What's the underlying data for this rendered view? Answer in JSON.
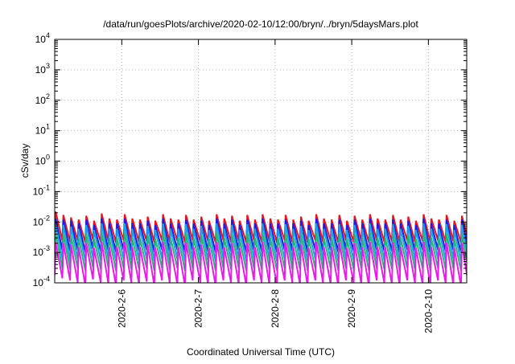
{
  "chart_data": {
    "type": "line",
    "title": "/data/run/goesPlots/archive/2020-02-10/12:00/bryn/../bryn/5daysMars.plot",
    "xlabel": "Coordinated Universal Time (UTC)",
    "ylabel": "cSv/day",
    "yscale": "log",
    "ylim": [
      0.0001,
      10000
    ],
    "xlim": [
      "2020-02-05 03:00",
      "2020-02-10 12:00"
    ],
    "x_ticks": [
      "2020-02-06",
      "2020-02-07",
      "2020-02-08",
      "2020-02-09",
      "2020-02-10"
    ],
    "x_tick_labels": [
      "2020-2-6",
      "2020-2-7",
      "2020-2-8",
      "2020-2-9",
      "2020-2-10"
    ],
    "y_tick_labels": [
      {
        "base": "10",
        "exp": "-4"
      },
      {
        "base": "10",
        "exp": "-3"
      },
      {
        "base": "10",
        "exp": "-2"
      },
      {
        "base": "10",
        "exp": "-1"
      },
      {
        "base": "10",
        "exp": "0"
      },
      {
        "base": "10",
        "exp": "1"
      },
      {
        "base": "10",
        "exp": "2"
      },
      {
        "base": "10",
        "exp": "3"
      },
      {
        "base": "10",
        "exp": "4"
      }
    ],
    "y_ticks": [
      0.0001,
      0.001,
      0.01,
      0.1,
      1,
      10,
      100,
      1000,
      10000
    ],
    "grid": true,
    "sawtooth_period_hours": 2.4,
    "series": [
      {
        "color": "#e8141c",
        "peaks": [
          0.022,
          0.017,
          0.014,
          0.012,
          0.016,
          0.011,
          0.019,
          0.013,
          0.012,
          0.018,
          0.013,
          0.012,
          0.015,
          0.011,
          0.018,
          0.013,
          0.012,
          0.017,
          0.012,
          0.015,
          0.011,
          0.018,
          0.013,
          0.016,
          0.011,
          0.017,
          0.012,
          0.018,
          0.013,
          0.012,
          0.017,
          0.012,
          0.015,
          0.011,
          0.018,
          0.013,
          0.012,
          0.017,
          0.011,
          0.016,
          0.012,
          0.018,
          0.013,
          0.012,
          0.017,
          0.012,
          0.015,
          0.011,
          0.018,
          0.013,
          0.012,
          0.017,
          0.011,
          0.016
        ],
        "troughs": [
          0.003,
          0.0025,
          0.0022,
          0.0024,
          0.0021,
          0.0026,
          0.0022,
          0.0024,
          0.0021,
          0.0025,
          0.0023,
          0.0022,
          0.0024,
          0.0021,
          0.0025,
          0.0022,
          0.0024,
          0.0021,
          0.0025,
          0.0022,
          0.0023,
          0.0021,
          0.0025,
          0.0022,
          0.0024,
          0.0021,
          0.0025,
          0.0022,
          0.0024,
          0.0021,
          0.0025,
          0.0022,
          0.0023,
          0.0021,
          0.0025,
          0.0022,
          0.0024,
          0.0021,
          0.0025,
          0.0022,
          0.0024,
          0.0021,
          0.0025,
          0.0022,
          0.0023,
          0.0021,
          0.0025,
          0.0022,
          0.0024,
          0.0021,
          0.0025,
          0.0022,
          0.0024,
          0.0021
        ]
      },
      {
        "color": "#1c1ce8",
        "peaks": [
          0.013,
          0.012,
          0.011,
          0.009,
          0.012,
          0.008,
          0.013,
          0.009,
          0.009,
          0.013,
          0.009,
          0.009,
          0.011,
          0.008,
          0.013,
          0.009,
          0.009,
          0.012,
          0.009,
          0.011,
          0.008,
          0.013,
          0.009,
          0.012,
          0.008,
          0.012,
          0.009,
          0.013,
          0.009,
          0.009,
          0.012,
          0.009,
          0.011,
          0.008,
          0.013,
          0.009,
          0.009,
          0.012,
          0.008,
          0.012,
          0.009,
          0.013,
          0.009,
          0.009,
          0.012,
          0.009,
          0.011,
          0.008,
          0.013,
          0.009,
          0.009,
          0.012,
          0.008,
          0.012
        ],
        "troughs": [
          0.0013,
          0.0012,
          0.0011,
          0.0012,
          0.001,
          0.0013,
          0.0011,
          0.0012,
          0.001,
          0.0012,
          0.0011,
          0.0011,
          0.0012,
          0.001,
          0.0012,
          0.0011,
          0.0012,
          0.001,
          0.0012,
          0.0011,
          0.0011,
          0.001,
          0.0012,
          0.0011,
          0.0012,
          0.001,
          0.0012,
          0.0011,
          0.0012,
          0.001,
          0.0012,
          0.0011,
          0.0011,
          0.001,
          0.0012,
          0.0011,
          0.0012,
          0.001,
          0.0012,
          0.0011,
          0.0012,
          0.001,
          0.0012,
          0.0011,
          0.0011,
          0.001,
          0.0012,
          0.0011,
          0.0012,
          0.001,
          0.0012,
          0.0011,
          0.0012,
          0.001
        ]
      },
      {
        "color": "#1ca0e8",
        "peaks": [
          0.009,
          0.008,
          0.007,
          0.006,
          0.008,
          0.0055,
          0.009,
          0.006,
          0.006,
          0.009,
          0.006,
          0.006,
          0.0075,
          0.0055,
          0.009,
          0.006,
          0.006,
          0.0085,
          0.006,
          0.0075,
          0.0055,
          0.009,
          0.006,
          0.008,
          0.0055,
          0.0085,
          0.006,
          0.009,
          0.006,
          0.006,
          0.0085,
          0.006,
          0.0075,
          0.0055,
          0.009,
          0.006,
          0.006,
          0.0085,
          0.0055,
          0.008,
          0.006,
          0.009,
          0.006,
          0.006,
          0.0085,
          0.006,
          0.0075,
          0.0055,
          0.009,
          0.006,
          0.006,
          0.0085,
          0.0055,
          0.008
        ],
        "troughs": [
          0.0007,
          0.0006,
          0.00055,
          0.0006,
          0.0005,
          0.00065,
          0.00055,
          0.0006,
          0.0005,
          0.0006,
          0.00055,
          0.00055,
          0.0006,
          0.0005,
          0.0006,
          0.00055,
          0.0006,
          0.0005,
          0.0006,
          0.00055,
          0.00055,
          0.0005,
          0.0006,
          0.00055,
          0.0006,
          0.0005,
          0.0006,
          0.00055,
          0.0006,
          0.0005,
          0.0006,
          0.00055,
          0.00055,
          0.0005,
          0.0006,
          0.00055,
          0.0006,
          0.0005,
          0.0006,
          0.00055,
          0.0006,
          0.0005,
          0.0006,
          0.00055,
          0.00055,
          0.0005,
          0.0006,
          0.00055,
          0.0006,
          0.0005,
          0.0006,
          0.00055,
          0.0006,
          0.0005
        ]
      },
      {
        "color": "#28b478",
        "peaks": [
          0.0045,
          0.004,
          0.0035,
          0.003,
          0.004,
          0.0028,
          0.0045,
          0.003,
          0.003,
          0.0045,
          0.003,
          0.003,
          0.0037,
          0.0028,
          0.0045,
          0.003,
          0.003,
          0.0042,
          0.003,
          0.0037,
          0.0028,
          0.0045,
          0.003,
          0.004,
          0.0028,
          0.0042,
          0.003,
          0.0045,
          0.003,
          0.003,
          0.0042,
          0.003,
          0.0037,
          0.0028,
          0.0045,
          0.003,
          0.003,
          0.0042,
          0.0028,
          0.004,
          0.003,
          0.0045,
          0.003,
          0.003,
          0.0042,
          0.003,
          0.0037,
          0.0028,
          0.0045,
          0.003,
          0.003,
          0.0042,
          0.0028,
          0.004
        ],
        "troughs": [
          0.00035,
          0.0003,
          0.00028,
          0.0003,
          0.00025,
          0.00032,
          0.00028,
          0.0003,
          0.00025,
          0.0003,
          0.00028,
          0.00028,
          0.0003,
          0.00025,
          0.0003,
          0.00028,
          0.0003,
          0.00025,
          0.0003,
          0.00028,
          0.00028,
          0.00025,
          0.0003,
          0.00028,
          0.0003,
          0.00025,
          0.0003,
          0.00028,
          0.0003,
          0.00025,
          0.0003,
          0.00028,
          0.00028,
          0.00025,
          0.0003,
          0.00028,
          0.0003,
          0.00025,
          0.0003,
          0.00028,
          0.0003,
          0.00025,
          0.0003,
          0.00028,
          0.00028,
          0.00025,
          0.0003,
          0.00028,
          0.0003,
          0.00025,
          0.0003,
          0.00028,
          0.0003,
          0.00025
        ]
      },
      {
        "color": "#e81ce8",
        "peaks": [
          0.0022,
          0.002,
          0.0018,
          0.0015,
          0.002,
          0.0014,
          0.0022,
          0.0015,
          0.0015,
          0.0022,
          0.0015,
          0.0015,
          0.0018,
          0.0014,
          0.0022,
          0.0015,
          0.0015,
          0.0021,
          0.0015,
          0.0018,
          0.0014,
          0.0022,
          0.0015,
          0.002,
          0.0014,
          0.0021,
          0.0015,
          0.0022,
          0.0015,
          0.0015,
          0.0021,
          0.0015,
          0.0018,
          0.0014,
          0.0022,
          0.0015,
          0.0015,
          0.0021,
          0.0014,
          0.002,
          0.0015,
          0.0022,
          0.0015,
          0.0015,
          0.0021,
          0.0015,
          0.0018,
          0.0014,
          0.0022,
          0.0015,
          0.0015,
          0.0021,
          0.0014,
          0.002
        ],
        "troughs": [
          0.00018,
          0.00014,
          0.00012,
          0.0001,
          8e-05,
          0.00013,
          0.0001,
          9e-05,
          8e-05,
          0.00012,
          0.0001,
          9e-05,
          0.00011,
          8e-05,
          0.00012,
          0.0001,
          9e-05,
          8e-05,
          0.00012,
          0.0001,
          9e-05,
          8e-05,
          0.00012,
          0.0001,
          9e-05,
          8e-05,
          0.00012,
          0.0001,
          9e-05,
          8e-05,
          0.00012,
          0.0001,
          9e-05,
          8e-05,
          0.00012,
          0.0001,
          9e-05,
          8e-05,
          0.00012,
          0.0001,
          9e-05,
          8e-05,
          0.00012,
          0.0001,
          9e-05,
          8e-05,
          0.00012,
          0.0001,
          9e-05,
          8e-05,
          0.00012,
          0.0001,
          9e-05,
          8e-05
        ]
      }
    ]
  }
}
